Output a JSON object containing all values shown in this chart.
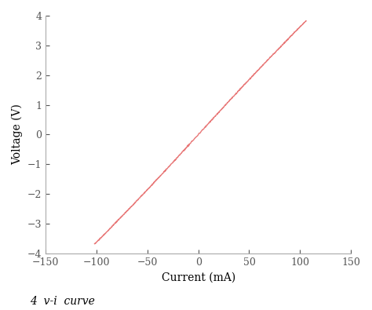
{
  "xlabel": "Current (mA)",
  "ylabel": "Voltage (V)",
  "xlim": [
    -150,
    150
  ],
  "ylim": [
    -4,
    4
  ],
  "xticks": [
    -150,
    -100,
    -50,
    0,
    50,
    100,
    150
  ],
  "yticks": [
    -4,
    -3,
    -2,
    -1,
    0,
    1,
    2,
    3,
    4
  ],
  "line_color": "#e87878",
  "line_width": 1.0,
  "bg_color": "#ffffff",
  "caption": "4  v-i  curve",
  "caption_fontsize": 10,
  "spine_color": "#aaaaaa",
  "tick_color": "#555555"
}
